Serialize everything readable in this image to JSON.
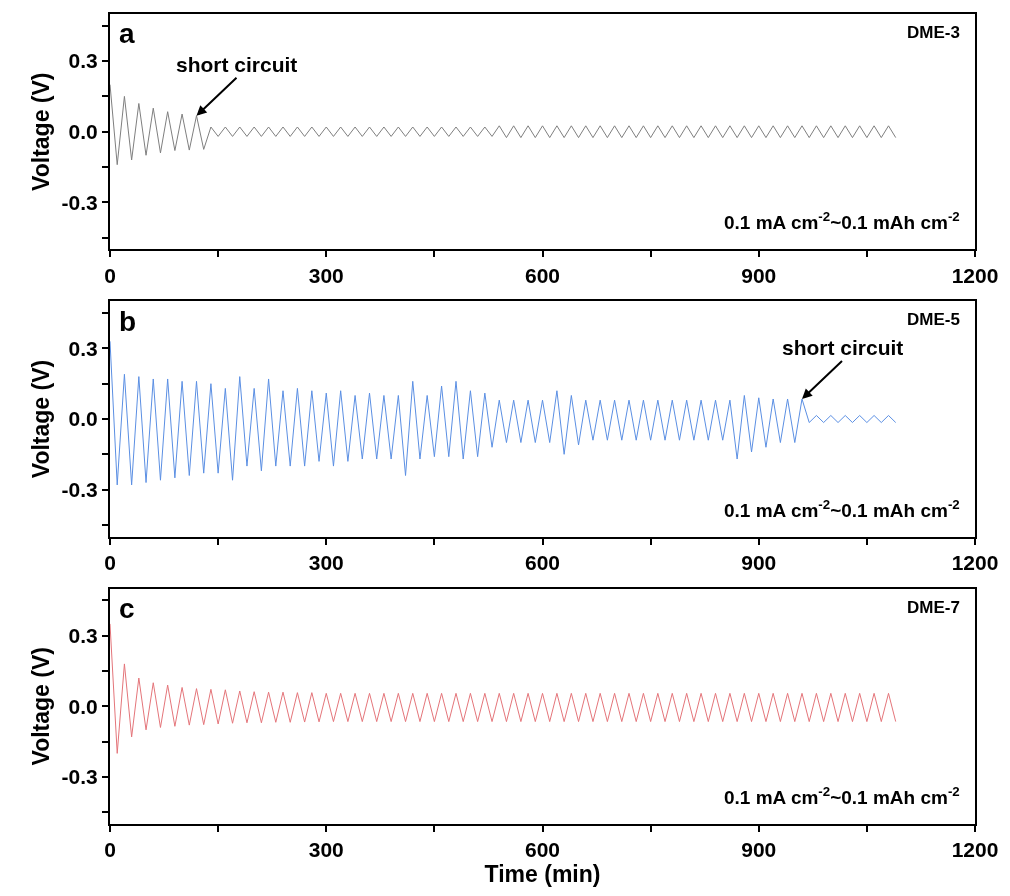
{
  "chart_data": [
    {
      "type": "line",
      "ylabel": "Voltage (V)",
      "xlim": [
        0,
        1200
      ],
      "ylim": [
        -0.5,
        0.5
      ],
      "xticks": [
        0,
        {
          "value": 150,
          "label": null
        },
        300,
        {
          "value": 450,
          "label": null
        },
        600,
        {
          "value": 750,
          "label": null
        },
        900,
        {
          "value": 1050,
          "label": null
        },
        1200
      ],
      "yticks": [
        {
          "value": -0.45,
          "label": null
        },
        {
          "value": -0.3,
          "label": "-0.3"
        },
        {
          "value": -0.15,
          "label": null
        },
        {
          "value": 0,
          "label": "0.0"
        },
        {
          "value": 0.15,
          "label": null
        },
        {
          "value": 0.3,
          "label": "0.3"
        },
        {
          "value": 0.45,
          "label": null
        }
      ],
      "marker": "none",
      "line_style": "solid",
      "annotations": [
        "a",
        "DME-3",
        "0.1 mA cm$^{-2}$~0.1 mAh cm$^{-2}$",
        {
          "text": "short circuit",
          "x": 120,
          "y": 0.068
        }
      ],
      "series": [
        {
          "color": "#7f7f7f",
          "x": [
            0,
            10,
            20,
            30,
            40,
            50,
            60,
            70,
            80,
            90,
            100,
            110,
            120,
            130,
            140,
            150,
            160,
            170,
            180,
            190,
            200,
            210,
            220,
            230,
            240,
            250,
            260,
            270,
            280,
            290,
            300,
            310,
            320,
            330,
            340,
            350,
            360,
            370,
            380,
            390,
            400,
            410,
            420,
            430,
            440,
            450,
            460,
            470,
            480,
            490,
            500,
            510,
            520,
            530,
            540,
            550,
            560,
            570,
            580,
            590,
            600,
            610,
            620,
            630,
            640,
            650,
            660,
            670,
            680,
            690,
            700,
            710,
            720,
            730,
            740,
            750,
            760,
            770,
            780,
            790,
            800,
            810,
            820,
            830,
            840,
            850,
            860,
            870,
            880,
            890,
            900,
            910,
            920,
            930,
            940,
            950,
            960,
            970,
            980,
            990,
            1000,
            1010,
            1020,
            1030,
            1040,
            1050,
            1060,
            1070,
            1080,
            1090
          ],
          "values": [
            0.2,
            -0.14,
            0.15,
            -0.12,
            0.12,
            -0.1,
            0.1,
            -0.09,
            0.085,
            -0.08,
            0.075,
            -0.078,
            0.068,
            -0.075,
            0.02,
            -0.02,
            0.02,
            -0.02,
            0.02,
            -0.02,
            0.02,
            -0.02,
            0.02,
            -0.02,
            0.02,
            -0.02,
            0.02,
            -0.02,
            0.02,
            -0.02,
            0.02,
            -0.02,
            0.02,
            -0.02,
            0.02,
            -0.02,
            0.02,
            -0.02,
            0.02,
            -0.02,
            0.02,
            -0.02,
            0.02,
            -0.02,
            0.02,
            -0.02,
            0.02,
            -0.02,
            0.02,
            -0.02,
            0.02,
            -0.02,
            0.02,
            -0.02,
            0.025,
            -0.025,
            0.025,
            -0.025,
            0.025,
            -0.025,
            0.025,
            -0.025,
            0.025,
            -0.025,
            0.025,
            -0.025,
            0.025,
            -0.025,
            0.025,
            -0.025,
            0.025,
            -0.025,
            0.025,
            -0.025,
            0.025,
            -0.025,
            0.025,
            -0.025,
            0.025,
            -0.025,
            0.025,
            -0.025,
            0.025,
            -0.025,
            0.025,
            -0.025,
            0.025,
            -0.025,
            0.025,
            -0.025,
            0.025,
            -0.025,
            0.025,
            -0.025,
            0.025,
            -0.025,
            0.025,
            -0.025,
            0.025,
            -0.025,
            0.025,
            -0.025,
            0.025,
            -0.025,
            0.025,
            -0.025,
            0.025,
            -0.025,
            0.025,
            -0.025
          ]
        }
      ]
    },
    {
      "type": "line",
      "ylabel": "Voltage (V)",
      "xlim": [
        0,
        1200
      ],
      "ylim": [
        -0.5,
        0.5
      ],
      "xticks": [
        0,
        {
          "value": 150,
          "label": null
        },
        300,
        {
          "value": 450,
          "label": null
        },
        600,
        {
          "value": 750,
          "label": null
        },
        900,
        {
          "value": 1050,
          "label": null
        },
        1200
      ],
      "yticks": [
        {
          "value": -0.45,
          "label": null
        },
        {
          "value": -0.3,
          "label": "-0.3"
        },
        {
          "value": -0.15,
          "label": null
        },
        {
          "value": 0,
          "label": "0.0"
        },
        {
          "value": 0.15,
          "label": null
        },
        {
          "value": 0.3,
          "label": "0.3"
        },
        {
          "value": 0.45,
          "label": null
        }
      ],
      "marker": "none",
      "line_style": "solid",
      "annotations": [
        "b",
        "DME-5",
        "0.1 mA cm$^{-2}$~0.1 mAh cm$^{-2}$",
        {
          "text": "short circuit",
          "x": 960,
          "y": 0.085
        }
      ],
      "series": [
        {
          "color": "#5b8fe3",
          "x": [
            0,
            10,
            20,
            30,
            40,
            50,
            60,
            70,
            80,
            90,
            100,
            110,
            120,
            130,
            140,
            150,
            160,
            170,
            180,
            190,
            200,
            210,
            220,
            230,
            240,
            250,
            260,
            270,
            280,
            290,
            300,
            310,
            320,
            330,
            340,
            350,
            360,
            370,
            380,
            390,
            400,
            410,
            420,
            430,
            440,
            450,
            460,
            470,
            480,
            490,
            500,
            510,
            520,
            530,
            540,
            550,
            560,
            570,
            580,
            590,
            600,
            610,
            620,
            630,
            640,
            650,
            660,
            670,
            680,
            690,
            700,
            710,
            720,
            730,
            740,
            750,
            760,
            770,
            780,
            790,
            800,
            810,
            820,
            830,
            840,
            850,
            860,
            870,
            880,
            890,
            900,
            910,
            920,
            930,
            940,
            950,
            960,
            970,
            980,
            990,
            1000,
            1010,
            1020,
            1030,
            1040,
            1050,
            1060,
            1070,
            1080,
            1090
          ],
          "values": [
            0.33,
            -0.28,
            0.19,
            -0.28,
            0.18,
            -0.27,
            0.17,
            -0.26,
            0.17,
            -0.25,
            0.16,
            -0.24,
            0.16,
            -0.23,
            0.15,
            -0.23,
            0.13,
            -0.26,
            0.18,
            -0.2,
            0.13,
            -0.22,
            0.17,
            -0.2,
            0.12,
            -0.2,
            0.13,
            -0.2,
            0.12,
            -0.18,
            0.11,
            -0.2,
            0.12,
            -0.18,
            0.1,
            -0.17,
            0.11,
            -0.17,
            0.1,
            -0.17,
            0.1,
            -0.24,
            0.16,
            -0.17,
            0.1,
            -0.16,
            0.14,
            -0.16,
            0.16,
            -0.17,
            0.12,
            -0.16,
            0.11,
            -0.12,
            0.08,
            -0.1,
            0.08,
            -0.1,
            0.08,
            -0.1,
            0.08,
            -0.1,
            0.12,
            -0.15,
            0.1,
            -0.11,
            0.08,
            -0.09,
            0.08,
            -0.09,
            0.08,
            -0.09,
            0.08,
            -0.09,
            0.08,
            -0.09,
            0.08,
            -0.09,
            0.08,
            -0.09,
            0.08,
            -0.09,
            0.08,
            -0.09,
            0.08,
            -0.09,
            0.08,
            -0.17,
            0.1,
            -0.14,
            0.09,
            -0.12,
            0.085,
            -0.1,
            0.085,
            -0.1,
            0.085,
            -0.015,
            0.015,
            -0.015,
            0.015,
            -0.015,
            0.015,
            -0.015,
            0.015,
            -0.015,
            0.015,
            -0.015,
            0.015,
            -0.015
          ]
        }
      ]
    },
    {
      "type": "line",
      "xlabel": "Time (min)",
      "ylabel": "Voltage (V)",
      "xlim": [
        0,
        1200
      ],
      "ylim": [
        -0.5,
        0.5
      ],
      "xticks": [
        0,
        {
          "value": 150,
          "label": null
        },
        300,
        {
          "value": 450,
          "label": null
        },
        600,
        {
          "value": 750,
          "label": null
        },
        900,
        {
          "value": 1050,
          "label": null
        },
        1200
      ],
      "yticks": [
        {
          "value": -0.45,
          "label": null
        },
        {
          "value": -0.3,
          "label": "-0.3"
        },
        {
          "value": -0.15,
          "label": null
        },
        {
          "value": 0,
          "label": "0.0"
        },
        {
          "value": 0.15,
          "label": null
        },
        {
          "value": 0.3,
          "label": "0.3"
        },
        {
          "value": 0.45,
          "label": null
        }
      ],
      "marker": "none",
      "line_style": "solid",
      "annotations": [
        "c",
        "DME-7",
        "0.1 mA cm$^{-2}$~0.1 mAh cm$^{-2}$"
      ],
      "series": [
        {
          "color": "#e4757a",
          "x": [
            0,
            10,
            20,
            30,
            40,
            50,
            60,
            70,
            80,
            90,
            100,
            110,
            120,
            130,
            140,
            150,
            160,
            170,
            180,
            190,
            200,
            210,
            220,
            230,
            240,
            250,
            260,
            270,
            280,
            290,
            300,
            310,
            320,
            330,
            340,
            350,
            360,
            370,
            380,
            390,
            400,
            410,
            420,
            430,
            440,
            450,
            460,
            470,
            480,
            490,
            500,
            510,
            520,
            530,
            540,
            550,
            560,
            570,
            580,
            590,
            600,
            610,
            620,
            630,
            640,
            650,
            660,
            670,
            680,
            690,
            700,
            710,
            720,
            730,
            740,
            750,
            760,
            770,
            780,
            790,
            800,
            810,
            820,
            830,
            840,
            850,
            860,
            870,
            880,
            890,
            900,
            910,
            920,
            930,
            940,
            950,
            960,
            970,
            980,
            990,
            1000,
            1010,
            1020,
            1030,
            1040,
            1050,
            1060,
            1070,
            1080,
            1090
          ],
          "values": [
            0.35,
            -0.2,
            0.18,
            -0.13,
            0.12,
            -0.1,
            0.1,
            -0.09,
            0.09,
            -0.085,
            0.08,
            -0.08,
            0.075,
            -0.078,
            0.072,
            -0.075,
            0.07,
            -0.072,
            0.065,
            -0.07,
            0.062,
            -0.07,
            0.06,
            -0.068,
            0.06,
            -0.068,
            0.058,
            -0.067,
            0.058,
            -0.066,
            0.055,
            -0.065,
            0.055,
            -0.065,
            0.055,
            -0.065,
            0.055,
            -0.065,
            0.055,
            -0.065,
            0.055,
            -0.065,
            0.055,
            -0.065,
            0.055,
            -0.065,
            0.055,
            -0.065,
            0.055,
            -0.065,
            0.055,
            -0.065,
            0.055,
            -0.065,
            0.055,
            -0.065,
            0.055,
            -0.065,
            0.055,
            -0.065,
            0.055,
            -0.065,
            0.055,
            -0.065,
            0.055,
            -0.065,
            0.055,
            -0.065,
            0.055,
            -0.065,
            0.055,
            -0.065,
            0.055,
            -0.065,
            0.055,
            -0.065,
            0.055,
            -0.065,
            0.055,
            -0.065,
            0.055,
            -0.065,
            0.055,
            -0.065,
            0.055,
            -0.065,
            0.055,
            -0.065,
            0.055,
            -0.065,
            0.055,
            -0.065,
            0.055,
            -0.065,
            0.055,
            -0.065,
            0.055,
            -0.065,
            0.055,
            -0.065,
            0.055,
            -0.065,
            0.055,
            -0.065,
            0.055,
            -0.065,
            0.055,
            -0.065,
            0.055,
            -0.065
          ]
        }
      ]
    }
  ]
}
